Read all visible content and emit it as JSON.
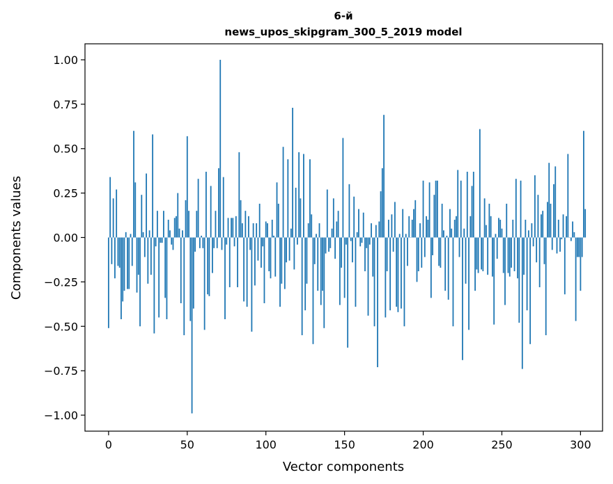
{
  "chart_data": {
    "type": "bar",
    "title_line1": "6-й",
    "title_line2": "news_upos_skipgram_300_5_2019 model",
    "xlabel": "Vector components",
    "ylabel": "Components values",
    "xlim": [
      -15,
      314
    ],
    "ylim": [
      -1.09,
      1.09
    ],
    "xticks": [
      0,
      50,
      100,
      150,
      200,
      250,
      300
    ],
    "yticks": [
      -1.0,
      -0.75,
      -0.5,
      -0.25,
      0.0,
      0.25,
      0.5,
      0.75,
      1.0
    ],
    "ytick_labels": [
      "−1.00",
      "−0.75",
      "−0.50",
      "−0.25",
      "0.00",
      "0.25",
      "0.50",
      "0.75",
      "1.00"
    ],
    "bar_color": "#1f77b4",
    "values": [
      -0.51,
      0.34,
      -0.15,
      0.22,
      -0.23,
      0.27,
      -0.16,
      -0.17,
      -0.46,
      -0.36,
      -0.3,
      0.03,
      -0.29,
      -0.29,
      0.02,
      -0.16,
      0.6,
      0.31,
      -0.31,
      -0.21,
      -0.5,
      0.24,
      0.03,
      -0.11,
      0.36,
      -0.26,
      0.04,
      -0.21,
      0.58,
      -0.54,
      -0.05,
      0.15,
      -0.45,
      -0.03,
      -0.03,
      0.15,
      -0.34,
      -0.46,
      0.1,
      0.04,
      -0.04,
      -0.07,
      0.11,
      0.12,
      0.25,
      0.05,
      -0.37,
      0.04,
      -0.55,
      0.21,
      0.57,
      0.15,
      -0.47,
      -0.99,
      -0.4,
      -0.08,
      0.15,
      0.33,
      -0.06,
      0.01,
      -0.06,
      -0.52,
      0.37,
      -0.32,
      -0.33,
      0.29,
      -0.2,
      -0.06,
      0.15,
      -0.06,
      0.39,
      1.0,
      -0.07,
      0.34,
      -0.46,
      -0.04,
      0.11,
      -0.28,
      0.11,
      0.11,
      -0.05,
      0.12,
      -0.28,
      0.48,
      0.21,
      0.08,
      -0.36,
      0.15,
      -0.39,
      0.12,
      -0.07,
      -0.53,
      0.08,
      -0.27,
      0.08,
      -0.13,
      0.19,
      -0.17,
      -0.05,
      -0.37,
      0.09,
      0.08,
      -0.19,
      -0.23,
      0.1,
      0.01,
      -0.22,
      0.31,
      0.19,
      -0.39,
      -0.26,
      0.51,
      -0.29,
      -0.14,
      0.44,
      -0.13,
      0.05,
      0.73,
      -0.18,
      0.28,
      -0.04,
      0.48,
      0.22,
      -0.55,
      0.47,
      -0.41,
      -0.26,
      0.08,
      0.44,
      0.13,
      -0.6,
      -0.15,
      0.02,
      -0.3,
      0.08,
      -0.38,
      -0.3,
      -0.51,
      -0.09,
      0.27,
      -0.08,
      -0.06,
      0.05,
      0.22,
      -0.12,
      0.09,
      0.15,
      -0.38,
      -0.17,
      0.56,
      -0.34,
      -0.04,
      -0.62,
      0.3,
      -0.02,
      -0.14,
      0.23,
      -0.39,
      0.03,
      0.16,
      -0.05,
      -0.03,
      0.14,
      -0.19,
      -0.06,
      -0.44,
      -0.04,
      0.08,
      -0.22,
      -0.5,
      0.07,
      -0.73,
      0.09,
      0.26,
      0.39,
      0.69,
      -0.45,
      -0.19,
      0.1,
      -0.41,
      0.13,
      -0.08,
      0.2,
      -0.39,
      -0.42,
      0.02,
      -0.4,
      0.16,
      -0.5,
      0.02,
      -0.16,
      0.12,
      0.0,
      0.1,
      0.16,
      0.21,
      -0.25,
      -0.19,
      0.08,
      -0.17,
      0.32,
      -0.11,
      0.12,
      0.1,
      0.31,
      -0.34,
      -0.1,
      0.24,
      0.32,
      0.32,
      -0.16,
      -0.17,
      0.19,
      0.04,
      -0.3,
      0.01,
      -0.35,
      0.16,
      0.05,
      -0.5,
      0.1,
      0.12,
      0.38,
      -0.11,
      0.32,
      -0.69,
      0.05,
      -0.26,
      0.37,
      -0.52,
      0.12,
      0.29,
      0.37,
      -0.3,
      -0.18,
      -0.2,
      0.61,
      -0.18,
      -0.19,
      0.22,
      0.07,
      -0.21,
      0.19,
      0.12,
      -0.22,
      -0.49,
      0.02,
      -0.12,
      0.11,
      0.1,
      0.05,
      -0.2,
      -0.38,
      0.19,
      -0.2,
      -0.22,
      -0.17,
      0.1,
      -0.19,
      0.33,
      -0.23,
      -0.48,
      0.32,
      -0.74,
      -0.21,
      0.1,
      -0.41,
      0.04,
      -0.6,
      0.08,
      -0.05,
      0.35,
      -0.14,
      0.24,
      -0.28,
      0.13,
      0.15,
      -0.15,
      -0.55,
      0.2,
      0.42,
      0.19,
      -0.07,
      0.3,
      0.4,
      -0.09,
      0.1,
      -0.08,
      -0.01,
      0.13,
      -0.32,
      0.12,
      0.47,
      0.0,
      -0.02,
      0.09,
      0.03,
      -0.47,
      -0.11,
      -0.11,
      -0.3,
      -0.11,
      0.6,
      0.16
    ]
  }
}
